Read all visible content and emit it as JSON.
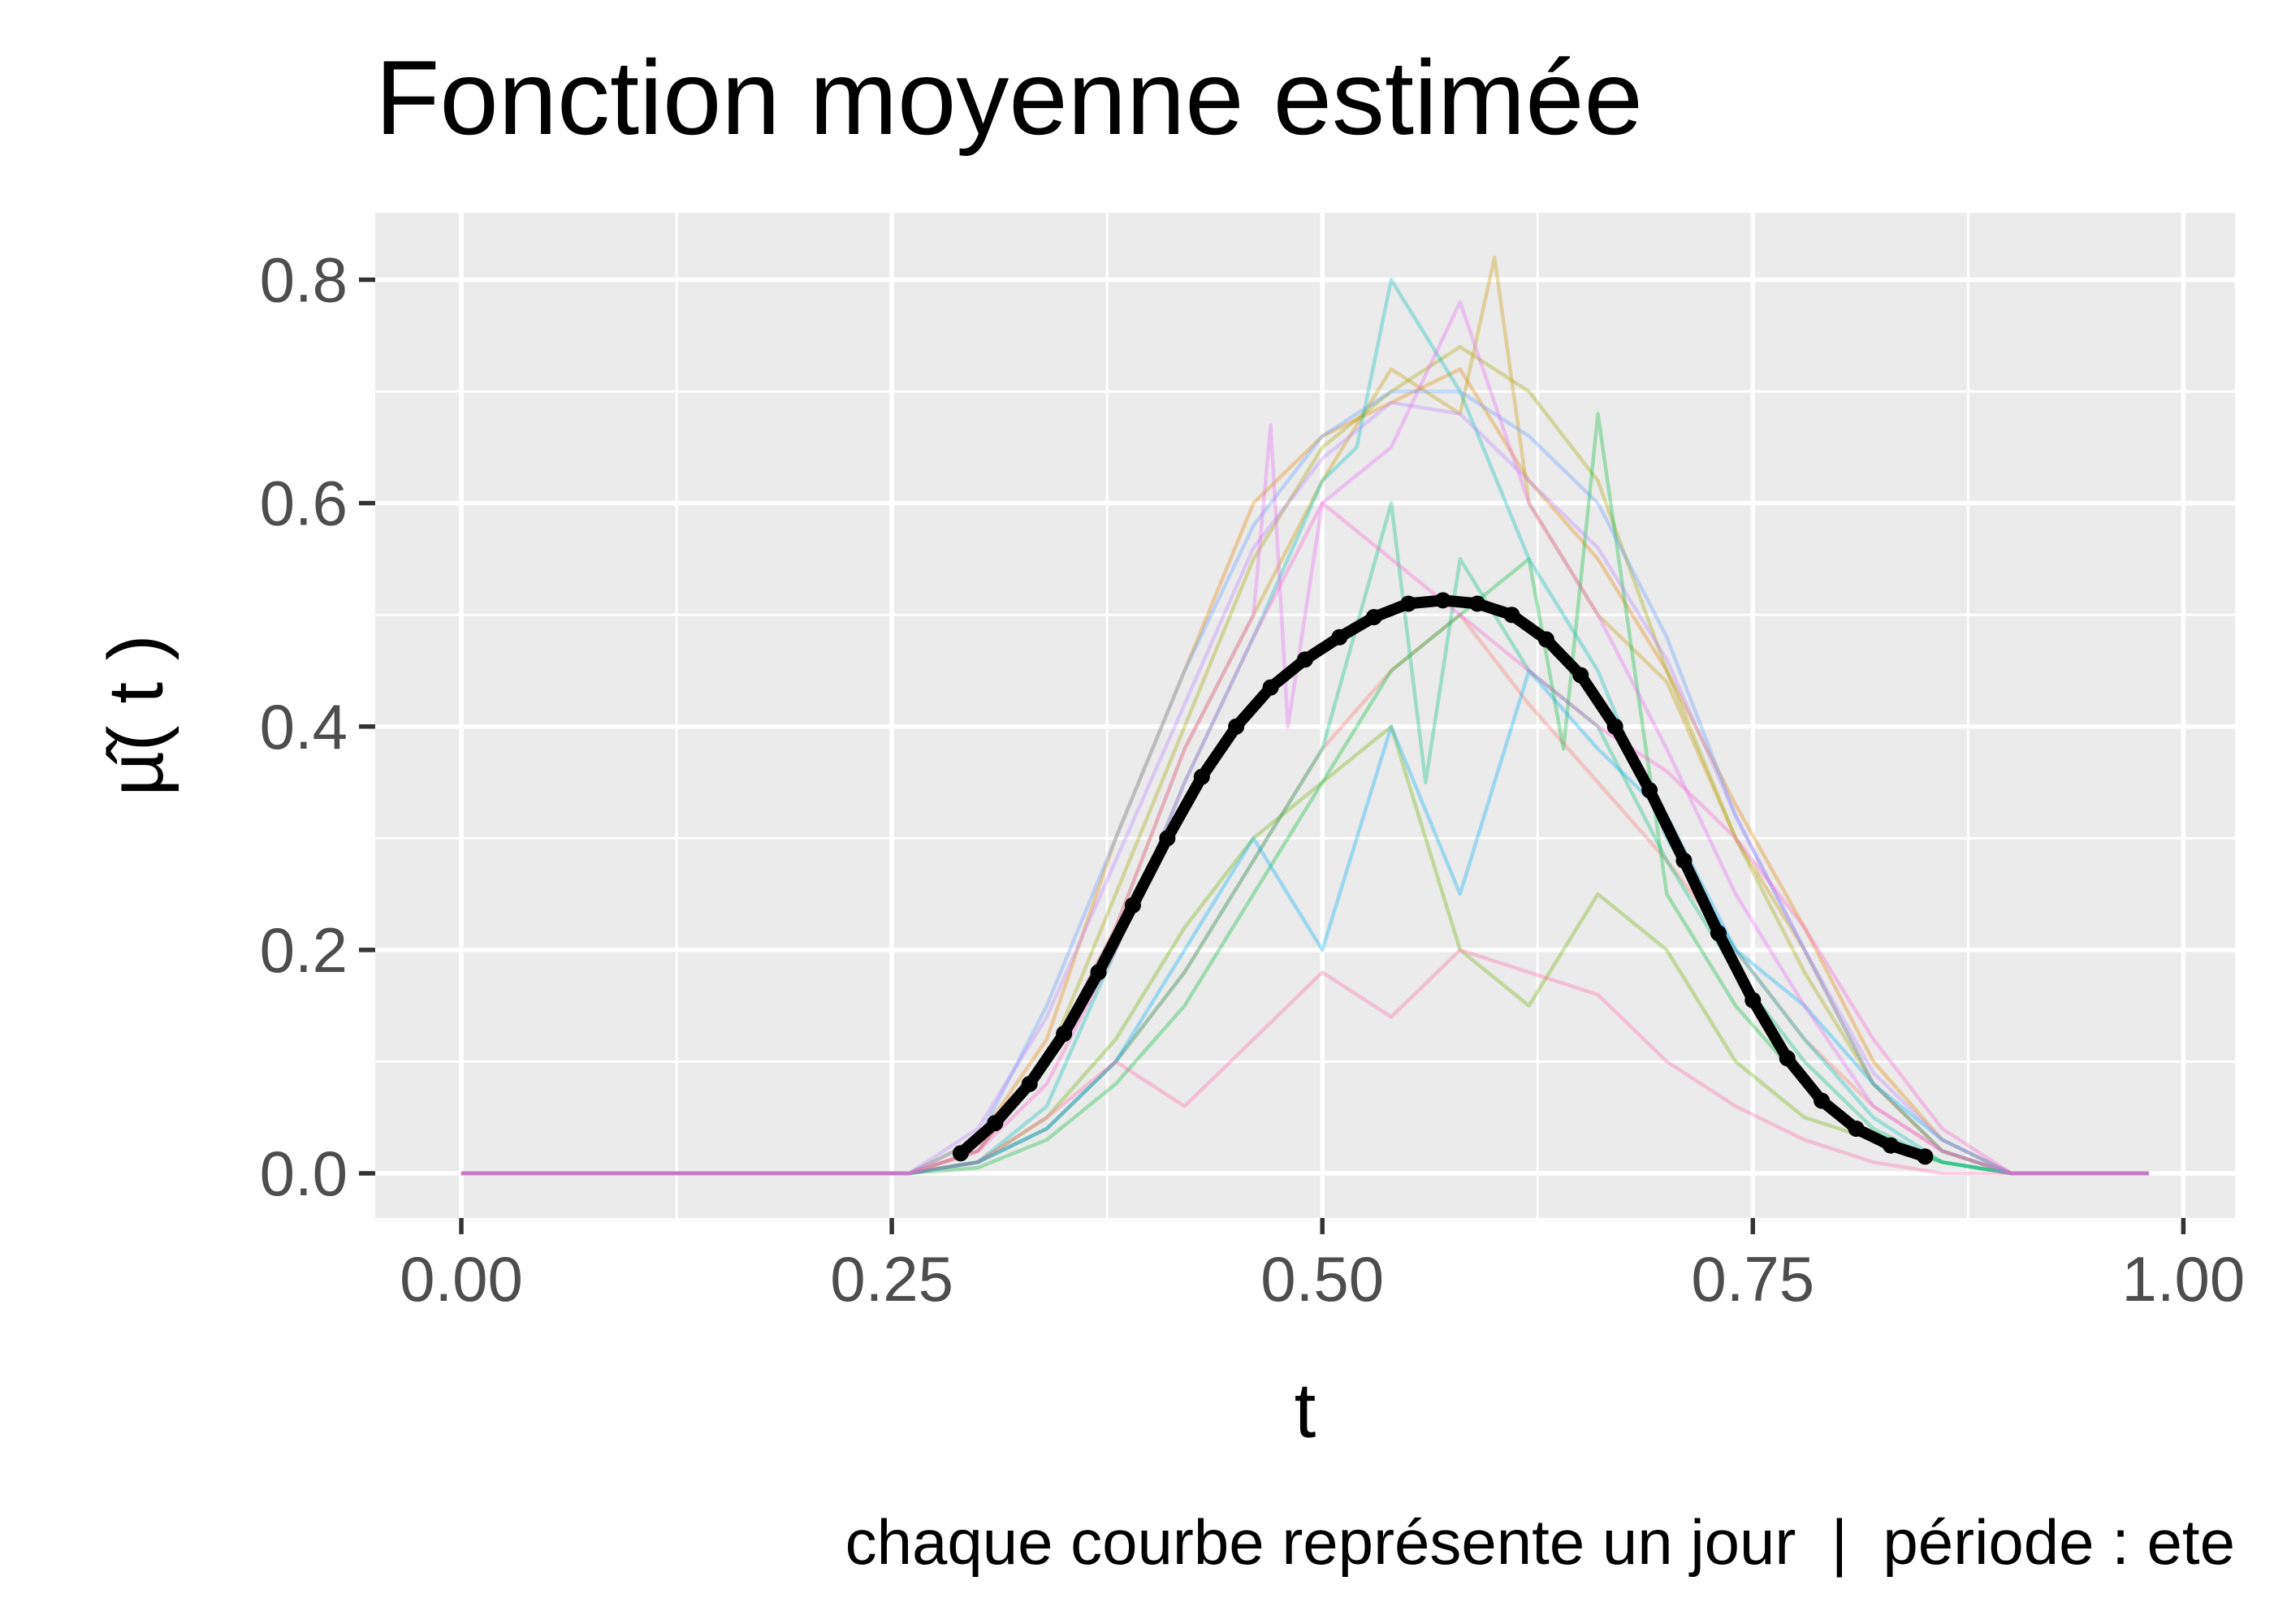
{
  "chart_data": {
    "type": "line",
    "title": "Fonction moyenne estimée",
    "xlabel": "t",
    "ylabel": "µ̂( t )",
    "caption": "chaque courbe représente un jour  |  période : ete",
    "xlim": [
      -0.05,
      1.03
    ],
    "ylim": [
      -0.04,
      0.86
    ],
    "x_ticks": [
      0.0,
      0.25,
      0.5,
      0.75,
      1.0
    ],
    "x_tick_labels": [
      "0.00",
      "0.25",
      "0.50",
      "0.75",
      "1.00"
    ],
    "y_ticks": [
      0.0,
      0.2,
      0.4,
      0.6,
      0.8
    ],
    "y_tick_labels": [
      "0.0",
      "0.2",
      "0.4",
      "0.6",
      "0.8"
    ],
    "grid": true,
    "panel_background": "#ebebeb",
    "mean_color": "#000000",
    "mean_curve": {
      "x": [
        0.29,
        0.31,
        0.33,
        0.35,
        0.37,
        0.39,
        0.41,
        0.43,
        0.45,
        0.47,
        0.49,
        0.51,
        0.53,
        0.55,
        0.57,
        0.59,
        0.61,
        0.63,
        0.65,
        0.67,
        0.69,
        0.71,
        0.73,
        0.75,
        0.77,
        0.79,
        0.81,
        0.83,
        0.85
      ],
      "y": [
        0.018,
        0.045,
        0.08,
        0.125,
        0.18,
        0.24,
        0.3,
        0.355,
        0.4,
        0.435,
        0.46,
        0.48,
        0.498,
        0.51,
        0.513,
        0.51,
        0.5,
        0.478,
        0.446,
        0.4,
        0.343,
        0.28,
        0.215,
        0.155,
        0.103,
        0.065,
        0.04,
        0.025,
        0.015
      ]
    },
    "series": [
      {
        "color": "#f8766d",
        "x": [
          0.0,
          0.26,
          0.3,
          0.34,
          0.38,
          0.42,
          0.46,
          0.5,
          0.54,
          0.58,
          0.62,
          0.66,
          0.7,
          0.74,
          0.78,
          0.82,
          0.86,
          0.9,
          0.98
        ],
        "y": [
          0,
          0,
          0.01,
          0.04,
          0.1,
          0.18,
          0.28,
          0.38,
          0.45,
          0.5,
          0.42,
          0.35,
          0.28,
          0.2,
          0.12,
          0.06,
          0.02,
          0,
          0
        ]
      },
      {
        "color": "#e58700",
        "x": [
          0.0,
          0.26,
          0.3,
          0.34,
          0.38,
          0.42,
          0.46,
          0.5,
          0.54,
          0.58,
          0.62,
          0.66,
          0.7,
          0.74,
          0.78,
          0.82,
          0.86,
          0.9,
          0.98
        ],
        "y": [
          0,
          0,
          0.03,
          0.12,
          0.3,
          0.45,
          0.6,
          0.66,
          0.69,
          0.72,
          0.62,
          0.55,
          0.45,
          0.33,
          0.22,
          0.1,
          0.03,
          0,
          0
        ]
      },
      {
        "color": "#c99800",
        "x": [
          0.0,
          0.26,
          0.3,
          0.34,
          0.38,
          0.42,
          0.46,
          0.5,
          0.54,
          0.58,
          0.6,
          0.62,
          0.66,
          0.7,
          0.74,
          0.78,
          0.82,
          0.86,
          0.9,
          0.98
        ],
        "y": [
          0,
          0,
          0.02,
          0.1,
          0.22,
          0.38,
          0.5,
          0.62,
          0.72,
          0.68,
          0.82,
          0.6,
          0.5,
          0.44,
          0.3,
          0.2,
          0.08,
          0.02,
          0,
          0
        ]
      },
      {
        "color": "#a3a500",
        "x": [
          0.0,
          0.26,
          0.3,
          0.34,
          0.38,
          0.42,
          0.46,
          0.5,
          0.54,
          0.58,
          0.62,
          0.66,
          0.7,
          0.74,
          0.78,
          0.82,
          0.86,
          0.9,
          0.98
        ],
        "y": [
          0,
          0,
          0.02,
          0.1,
          0.25,
          0.4,
          0.55,
          0.65,
          0.7,
          0.74,
          0.7,
          0.62,
          0.45,
          0.3,
          0.18,
          0.08,
          0.02,
          0,
          0
        ]
      },
      {
        "color": "#6bb100",
        "x": [
          0.0,
          0.26,
          0.3,
          0.34,
          0.38,
          0.42,
          0.46,
          0.5,
          0.54,
          0.58,
          0.62,
          0.66,
          0.7,
          0.74,
          0.78,
          0.82,
          0.86,
          0.9,
          0.98
        ],
        "y": [
          0,
          0,
          0.01,
          0.05,
          0.12,
          0.22,
          0.3,
          0.35,
          0.4,
          0.2,
          0.15,
          0.25,
          0.2,
          0.1,
          0.05,
          0.03,
          0.01,
          0,
          0
        ]
      },
      {
        "color": "#00ba38",
        "x": [
          0.0,
          0.26,
          0.3,
          0.34,
          0.38,
          0.42,
          0.46,
          0.5,
          0.54,
          0.58,
          0.62,
          0.64,
          0.66,
          0.7,
          0.74,
          0.78,
          0.82,
          0.86,
          0.9,
          0.98
        ],
        "y": [
          0,
          0,
          0.005,
          0.03,
          0.08,
          0.15,
          0.25,
          0.35,
          0.45,
          0.5,
          0.55,
          0.38,
          0.68,
          0.25,
          0.15,
          0.08,
          0.03,
          0.01,
          0,
          0
        ]
      },
      {
        "color": "#00bf7d",
        "x": [
          0.0,
          0.26,
          0.3,
          0.34,
          0.38,
          0.42,
          0.46,
          0.5,
          0.54,
          0.56,
          0.58,
          0.62,
          0.66,
          0.7,
          0.74,
          0.78,
          0.82,
          0.86,
          0.9,
          0.98
        ],
        "y": [
          0,
          0,
          0.01,
          0.04,
          0.1,
          0.18,
          0.28,
          0.38,
          0.6,
          0.35,
          0.55,
          0.45,
          0.4,
          0.28,
          0.18,
          0.1,
          0.04,
          0.01,
          0,
          0
        ]
      },
      {
        "color": "#00c0b8",
        "x": [
          0.0,
          0.26,
          0.3,
          0.34,
          0.38,
          0.42,
          0.46,
          0.5,
          0.52,
          0.54,
          0.58,
          0.62,
          0.66,
          0.7,
          0.74,
          0.78,
          0.82,
          0.86,
          0.9,
          0.98
        ],
        "y": [
          0,
          0,
          0.01,
          0.06,
          0.2,
          0.35,
          0.48,
          0.62,
          0.65,
          0.8,
          0.7,
          0.55,
          0.45,
          0.3,
          0.2,
          0.12,
          0.05,
          0.01,
          0,
          0
        ]
      },
      {
        "color": "#00b0f6",
        "x": [
          0.0,
          0.26,
          0.3,
          0.34,
          0.38,
          0.42,
          0.46,
          0.5,
          0.54,
          0.58,
          0.62,
          0.66,
          0.7,
          0.74,
          0.78,
          0.82,
          0.86,
          0.9,
          0.98
        ],
        "y": [
          0,
          0,
          0.01,
          0.04,
          0.1,
          0.2,
          0.3,
          0.2,
          0.4,
          0.25,
          0.45,
          0.38,
          0.32,
          0.2,
          0.15,
          0.08,
          0.03,
          0,
          0
        ]
      },
      {
        "color": "#619cff",
        "x": [
          0.0,
          0.26,
          0.3,
          0.34,
          0.38,
          0.42,
          0.46,
          0.5,
          0.54,
          0.58,
          0.62,
          0.66,
          0.7,
          0.74,
          0.78,
          0.82,
          0.86,
          0.9,
          0.98
        ],
        "y": [
          0,
          0,
          0.03,
          0.15,
          0.3,
          0.45,
          0.58,
          0.66,
          0.7,
          0.7,
          0.66,
          0.6,
          0.48,
          0.32,
          0.2,
          0.08,
          0.02,
          0,
          0
        ]
      },
      {
        "color": "#b983ff",
        "x": [
          0.0,
          0.26,
          0.3,
          0.34,
          0.38,
          0.42,
          0.46,
          0.5,
          0.54,
          0.58,
          0.62,
          0.66,
          0.7,
          0.74,
          0.78,
          0.82,
          0.86,
          0.9,
          0.98
        ],
        "y": [
          0,
          0,
          0.04,
          0.14,
          0.28,
          0.42,
          0.56,
          0.64,
          0.69,
          0.68,
          0.62,
          0.56,
          0.46,
          0.32,
          0.2,
          0.09,
          0.03,
          0,
          0
        ]
      },
      {
        "color": "#e76bf3",
        "x": [
          0.0,
          0.26,
          0.3,
          0.34,
          0.38,
          0.42,
          0.46,
          0.47,
          0.48,
          0.5,
          0.54,
          0.58,
          0.62,
          0.66,
          0.7,
          0.74,
          0.78,
          0.82,
          0.86,
          0.9,
          0.98
        ],
        "y": [
          0,
          0,
          0.02,
          0.1,
          0.22,
          0.38,
          0.5,
          0.67,
          0.4,
          0.6,
          0.65,
          0.78,
          0.6,
          0.5,
          0.38,
          0.25,
          0.15,
          0.06,
          0.02,
          0,
          0
        ]
      },
      {
        "color": "#fd61d1",
        "x": [
          0.0,
          0.26,
          0.3,
          0.34,
          0.38,
          0.42,
          0.46,
          0.5,
          0.54,
          0.58,
          0.62,
          0.66,
          0.7,
          0.74,
          0.78,
          0.82,
          0.86,
          0.9,
          0.98
        ],
        "y": [
          0,
          0,
          0.02,
          0.08,
          0.2,
          0.35,
          0.48,
          0.6,
          0.55,
          0.5,
          0.45,
          0.4,
          0.36,
          0.3,
          0.22,
          0.12,
          0.04,
          0,
          0
        ]
      },
      {
        "color": "#ff67a4",
        "x": [
          0.0,
          0.26,
          0.3,
          0.34,
          0.38,
          0.42,
          0.46,
          0.5,
          0.54,
          0.58,
          0.62,
          0.66,
          0.7,
          0.74,
          0.78,
          0.82,
          0.86,
          0.9,
          0.98
        ],
        "y": [
          0,
          0,
          0.01,
          0.05,
          0.1,
          0.06,
          0.12,
          0.18,
          0.14,
          0.2,
          0.18,
          0.16,
          0.1,
          0.06,
          0.03,
          0.01,
          0,
          0,
          0
        ]
      }
    ]
  }
}
